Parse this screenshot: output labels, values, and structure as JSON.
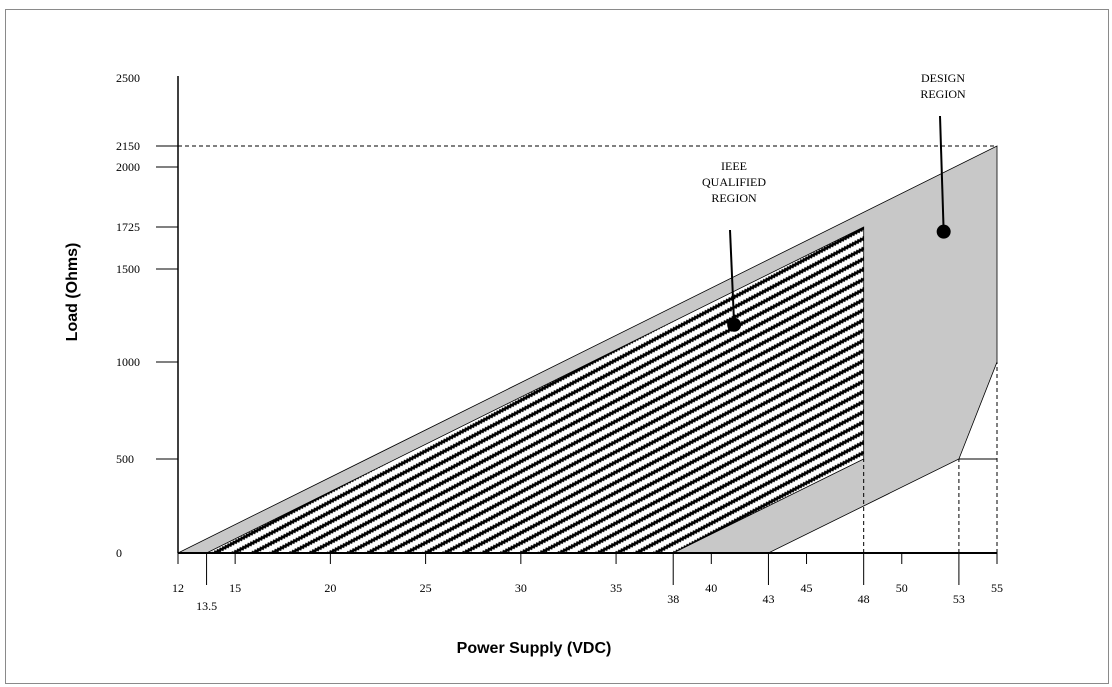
{
  "chart_data": {
    "type": "area",
    "xlabel": "Power Supply (VDC)",
    "ylabel": "Load (Ohms)",
    "xlim": [
      12,
      55
    ],
    "ylim": [
      0,
      2500
    ],
    "x_ticks": [
      {
        "value": 12,
        "label": "12",
        "row": "upper"
      },
      {
        "value": 13.5,
        "label": "13.5",
        "row": "lower"
      },
      {
        "value": 15,
        "label": "15",
        "row": "upper"
      },
      {
        "value": 20,
        "label": "20",
        "row": "upper"
      },
      {
        "value": 25,
        "label": "25",
        "row": "upper"
      },
      {
        "value": 30,
        "label": "30",
        "row": "upper"
      },
      {
        "value": 35,
        "label": "35",
        "row": "upper"
      },
      {
        "value": 38,
        "label": "38",
        "row": "middle"
      },
      {
        "value": 40,
        "label": "40",
        "row": "upper"
      },
      {
        "value": 43,
        "label": "43",
        "row": "middle"
      },
      {
        "value": 45,
        "label": "45",
        "row": "upper"
      },
      {
        "value": 48,
        "label": "48",
        "row": "middle"
      },
      {
        "value": 50,
        "label": "50",
        "row": "upper"
      },
      {
        "value": 53,
        "label": "53",
        "row": "middle"
      },
      {
        "value": 55,
        "label": "55",
        "row": "upper"
      }
    ],
    "y_ticks": [
      {
        "value": 0,
        "label": "0"
      },
      {
        "value": 500,
        "label": "500"
      },
      {
        "value": 1000,
        "label": "1000"
      },
      {
        "value": 1500,
        "label": "1500"
      },
      {
        "value": 1725,
        "label": "1725"
      },
      {
        "value": 2000,
        "label": "2000"
      },
      {
        "value": 2150,
        "label": "2150"
      },
      {
        "value": 2500,
        "label": "2500"
      }
    ],
    "regions": [
      {
        "name": "DESIGN REGION",
        "label_lines": [
          "DESIGN",
          "REGION"
        ],
        "fill": "#c8c8c8",
        "polygon": [
          [
            12,
            0
          ],
          [
            55,
            2150
          ],
          [
            55,
            1000
          ],
          [
            53,
            500
          ],
          [
            43,
            0
          ]
        ],
        "marker": [
          52.2,
          1700
        ]
      },
      {
        "name": "IEEE QUALIFIED REGION",
        "label_lines": [
          "IEEE",
          "QUALIFIED",
          "REGION"
        ],
        "pattern": "diagonal-hatch",
        "polygon": [
          [
            13.5,
            0
          ],
          [
            48,
            1725
          ],
          [
            48,
            500
          ],
          [
            38,
            0
          ]
        ],
        "marker": [
          41.2,
          1200
        ]
      }
    ],
    "reference_lines": [
      {
        "from": [
          12,
          2150
        ],
        "to": [
          55,
          2150
        ],
        "style": "dashed"
      },
      {
        "from": [
          48,
          0
        ],
        "to": [
          48,
          500
        ],
        "style": "dashed"
      },
      {
        "from": [
          53,
          0
        ],
        "to": [
          53,
          500
        ],
        "style": "dashed"
      },
      {
        "from": [
          55,
          0
        ],
        "to": [
          55,
          1000
        ],
        "style": "dashed"
      },
      {
        "from": [
          53,
          500
        ],
        "to": [
          55,
          500
        ],
        "style": "solid"
      }
    ],
    "grid": false,
    "legend": "none"
  }
}
